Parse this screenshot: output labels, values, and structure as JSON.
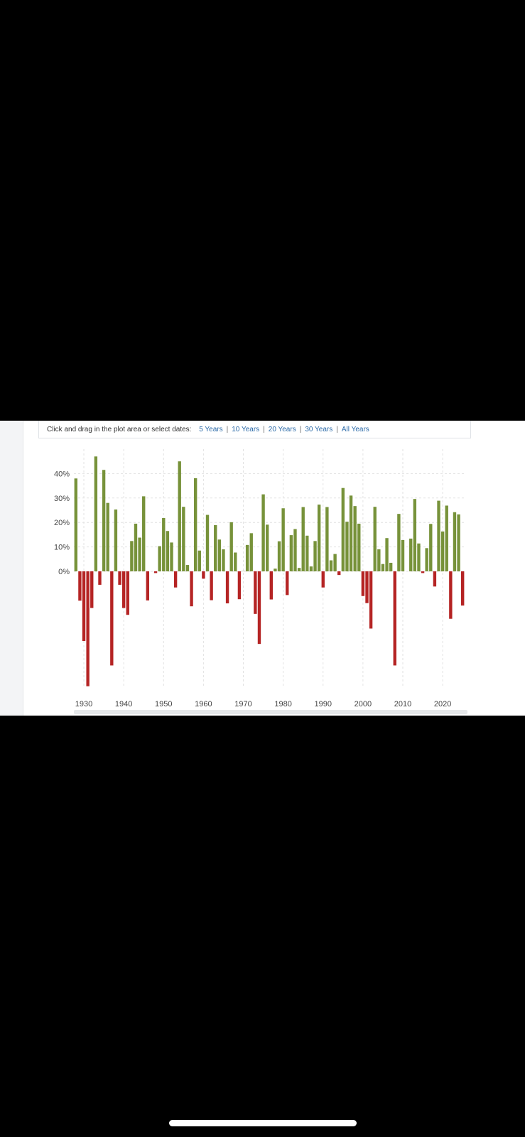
{
  "toolbar": {
    "prompt": "Click and drag in the plot area or select dates:",
    "ranges": [
      "5 Years",
      "10 Years",
      "20 Years",
      "30 Years",
      "All Years"
    ]
  },
  "colors": {
    "positive": "#77923a",
    "negative": "#b52424",
    "grid": "#e2e2e2"
  },
  "chart_data": {
    "type": "bar",
    "title": "",
    "xlabel": "",
    "ylabel": "",
    "x": [
      1928,
      1929,
      1930,
      1931,
      1932,
      1933,
      1934,
      1935,
      1936,
      1937,
      1938,
      1939,
      1940,
      1941,
      1942,
      1943,
      1944,
      1945,
      1946,
      1947,
      1948,
      1949,
      1950,
      1951,
      1952,
      1953,
      1954,
      1955,
      1956,
      1957,
      1958,
      1959,
      1960,
      1961,
      1962,
      1963,
      1964,
      1965,
      1966,
      1967,
      1968,
      1969,
      1970,
      1971,
      1972,
      1973,
      1974,
      1975,
      1976,
      1977,
      1978,
      1979,
      1980,
      1981,
      1982,
      1983,
      1984,
      1985,
      1986,
      1987,
      1988,
      1989,
      1990,
      1991,
      1992,
      1993,
      1994,
      1995,
      1996,
      1997,
      1998,
      1999,
      2000,
      2001,
      2002,
      2003,
      2004,
      2005,
      2006,
      2007,
      2008,
      2009,
      2010,
      2011,
      2012,
      2013,
      2014,
      2015,
      2016,
      2017,
      2018,
      2019,
      2020,
      2021,
      2022,
      2023,
      2024,
      2025
    ],
    "values": [
      38,
      -12,
      -28.5,
      -47,
      -15,
      47,
      -5.5,
      41.5,
      28,
      -38.5,
      25.3,
      -5.5,
      -15,
      -17.8,
      12.4,
      19.5,
      13.8,
      30.7,
      -11.9,
      0,
      -0.7,
      10.3,
      21.8,
      16.5,
      11.8,
      -6.6,
      45,
      26.4,
      2.6,
      -14.3,
      38.1,
      8.5,
      -3,
      23.1,
      -11.8,
      18.9,
      13,
      9,
      -13.1,
      20.1,
      7.7,
      -11.4,
      0.1,
      10.8,
      15.6,
      -17.4,
      -29.7,
      31.5,
      19.1,
      -11.5,
      1.1,
      12.3,
      25.8,
      -9.7,
      14.8,
      17.3,
      1.4,
      26.3,
      14.6,
      2,
      12.4,
      27.3,
      -6.6,
      26.3,
      4.5,
      7.1,
      -1.5,
      34.1,
      20.3,
      31,
      26.7,
      19.5,
      -10.1,
      -13,
      -23.4,
      26.4,
      9,
      3,
      13.6,
      3.5,
      -38.5,
      23.5,
      12.8,
      0,
      13.4,
      29.6,
      11.4,
      -0.7,
      9.5,
      19.4,
      -6.2,
      28.9,
      16.3,
      26.9,
      -19.4,
      24.2,
      23.3,
      -14
    ]
  },
  "axes": {
    "ylim": [
      -47,
      50
    ],
    "y_ticks": [
      {
        "value": 0,
        "label": "0%"
      },
      {
        "value": 10,
        "label": "10%"
      },
      {
        "value": 20,
        "label": "20%"
      },
      {
        "value": 30,
        "label": "30%"
      },
      {
        "value": 40,
        "label": "40%"
      }
    ],
    "x_ticks": [
      {
        "value": 1930,
        "label": "1930"
      },
      {
        "value": 1940,
        "label": "1940"
      },
      {
        "value": 1950,
        "label": "1950"
      },
      {
        "value": 1960,
        "label": "1960"
      },
      {
        "value": 1970,
        "label": "1970"
      },
      {
        "value": 1980,
        "label": "1980"
      },
      {
        "value": 1990,
        "label": "1990"
      },
      {
        "value": 2000,
        "label": "2000"
      },
      {
        "value": 2010,
        "label": "2010"
      },
      {
        "value": 2020,
        "label": "2020"
      }
    ],
    "grid": true
  }
}
